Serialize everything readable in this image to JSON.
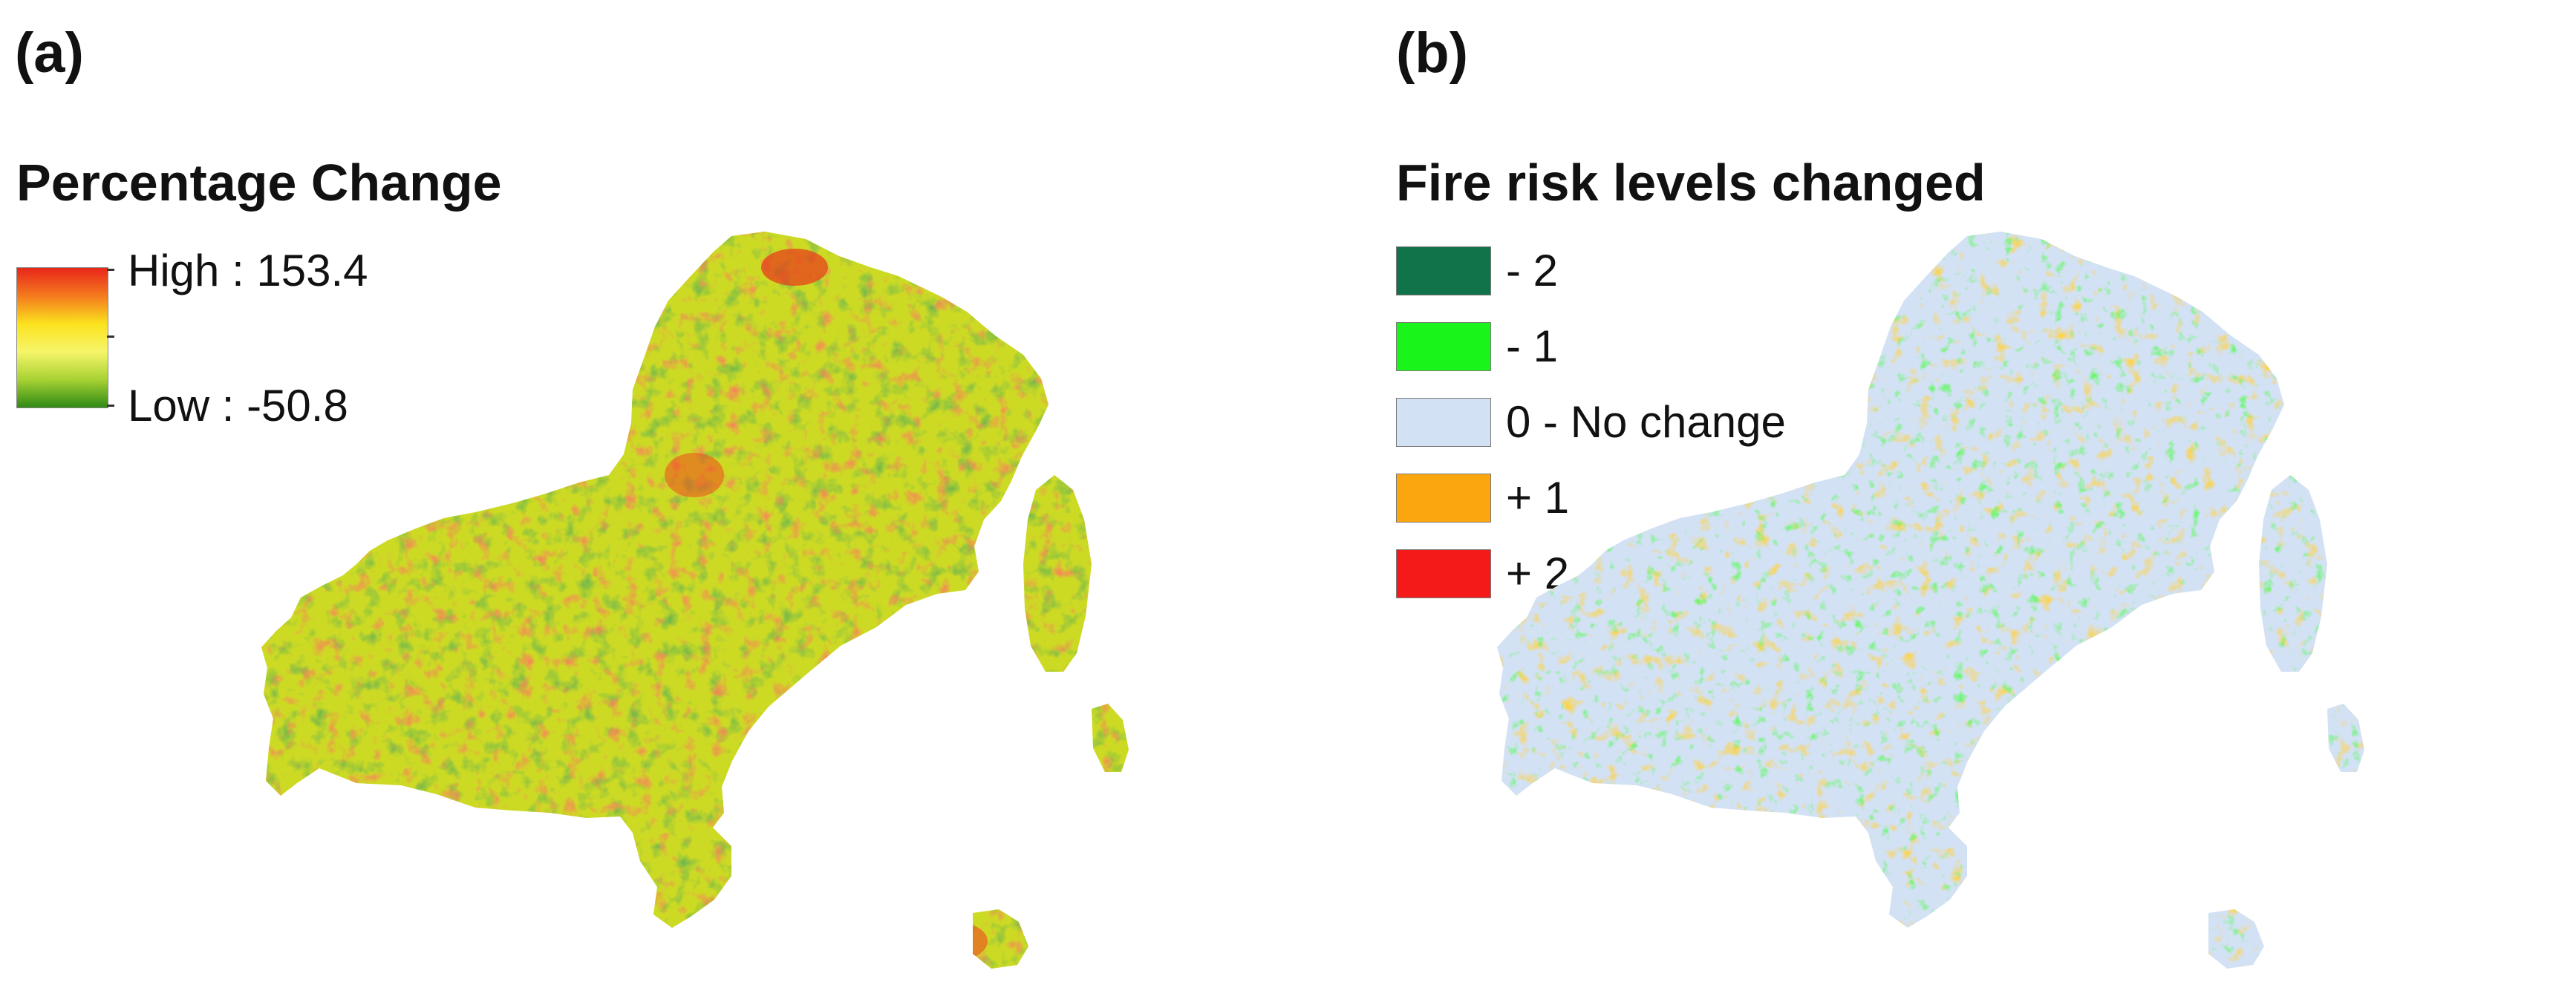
{
  "panel_a": {
    "label": "(a)",
    "legend_title": "Percentage Change",
    "legend_high": "High : 153.4",
    "legend_low": "Low : -50.8",
    "high_value": 153.4,
    "low_value": -50.8,
    "ramp_colors": [
      "#e8261a",
      "#f47a1e",
      "#fbe21d",
      "#f6f56a",
      "#a8d233",
      "#2f8a16"
    ]
  },
  "panel_b": {
    "label": "(b)",
    "legend_title": "Fire risk levels changed",
    "items": [
      {
        "label": "- 2",
        "color": "#11734a"
      },
      {
        "label": "- 1",
        "color": "#19f51a"
      },
      {
        "label": "0 - No change",
        "color": "#d3e1f5"
      },
      {
        "label": "+ 1",
        "color": "#fca60f"
      },
      {
        "label": "+ 2",
        "color": "#f51a1a"
      }
    ]
  }
}
